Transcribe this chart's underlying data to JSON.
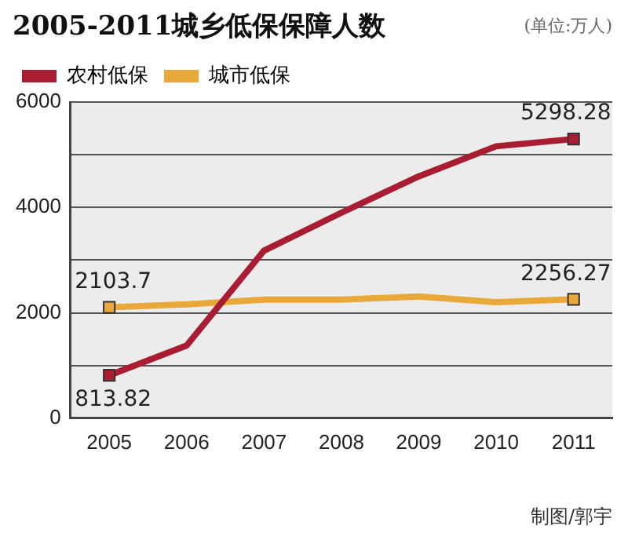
{
  "chart_data": {
    "type": "line",
    "title": "2005-2011城乡低保保障人数",
    "ylabel": "(单位:万人)",
    "categories": [
      "2005",
      "2006",
      "2007",
      "2008",
      "2009",
      "2010",
      "2011"
    ],
    "series": [
      {
        "name": "农村低保",
        "color": "#a91d32",
        "values": [
          813.82,
          1380,
          3180,
          3900,
          4590,
          5160,
          5298.28
        ],
        "value_labels": [
          "813.82",
          null,
          null,
          null,
          null,
          null,
          "5298.28"
        ]
      },
      {
        "name": "城市低保",
        "color": "#e8a93a",
        "values": [
          2103.7,
          2160,
          2250,
          2250,
          2310,
          2200,
          2256.27
        ],
        "value_labels": [
          "2103.7",
          null,
          null,
          null,
          null,
          null,
          "2256.27"
        ]
      }
    ],
    "ylim": [
      0,
      6000
    ],
    "yticks": [
      0,
      {
        "value": 1000,
        "label": null
      },
      2000,
      {
        "value": 3000,
        "label": null
      },
      4000,
      {
        "value": 5000,
        "label": null
      },
      6000
    ],
    "grid": "y",
    "legend": "top left",
    "line_style": "solid",
    "annotations": [
      "制图/郭宇"
    ]
  }
}
